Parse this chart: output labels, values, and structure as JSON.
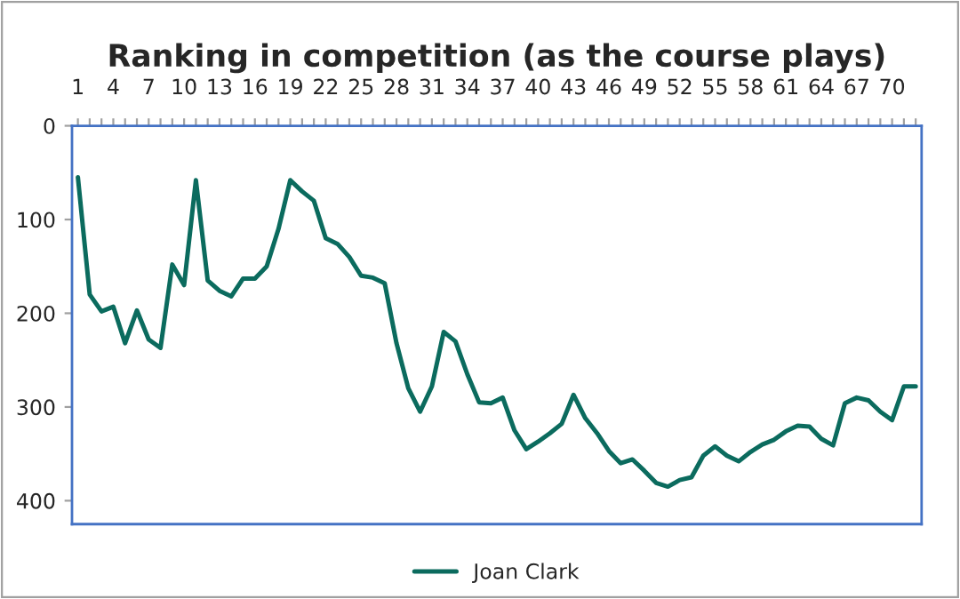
{
  "chart_data": {
    "type": "line",
    "title": "Ranking in competition (as the course plays)",
    "categories": [
      "1",
      null,
      null,
      "4",
      null,
      null,
      "7",
      null,
      null,
      "10",
      null,
      null,
      "13",
      null,
      null,
      "16",
      null,
      null,
      "19",
      null,
      null,
      "22",
      null,
      null,
      "25",
      null,
      null,
      "28",
      null,
      null,
      "31",
      null,
      null,
      "34",
      null,
      null,
      "37",
      null,
      null,
      "40",
      null,
      null,
      "43",
      null,
      null,
      "46",
      null,
      null,
      "49",
      null,
      null,
      "52",
      null,
      null,
      "55",
      null,
      null,
      "58",
      null,
      null,
      "61",
      null,
      null,
      "64",
      null,
      null,
      "67",
      null,
      null,
      "70",
      null,
      null
    ],
    "series": [
      {
        "name": "Joan Clark",
        "color": "#0b6b5e",
        "values": [
          55,
          180,
          198,
          193,
          232,
          197,
          228,
          237,
          148,
          170,
          58,
          165,
          176,
          182,
          163,
          163,
          150,
          110,
          58,
          70,
          80,
          120,
          126,
          140,
          160,
          162,
          168,
          232,
          280,
          305,
          278,
          220,
          230,
          265,
          295,
          296,
          290,
          325,
          345,
          337,
          328,
          318,
          287,
          312,
          328,
          347,
          360,
          356,
          368,
          381,
          385,
          378,
          375,
          352,
          342,
          352,
          358,
          348,
          340,
          335,
          326,
          320,
          321,
          334,
          341,
          296,
          290,
          293,
          305,
          314,
          278,
          278
        ]
      }
    ],
    "ylim": [
      425,
      0
    ],
    "yticks": [
      0,
      100,
      200,
      300,
      400
    ],
    "grid": false,
    "legend": "bottom",
    "marker": "none",
    "line_style": "solid"
  }
}
